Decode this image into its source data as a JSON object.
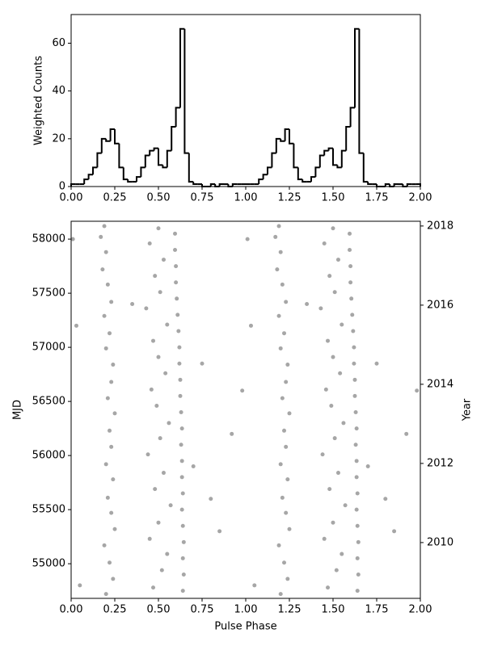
{
  "chart_data": [
    {
      "type": "histogram",
      "ylabel": "Weighted Counts",
      "color": "#000000",
      "bins": [
        0,
        0.025,
        0.05,
        0.075,
        0.1,
        0.125,
        0.15,
        0.175,
        0.2,
        0.225,
        0.25,
        0.275,
        0.3,
        0.325,
        0.35,
        0.375,
        0.4,
        0.425,
        0.45,
        0.475,
        0.5,
        0.525,
        0.55,
        0.575,
        0.6,
        0.625,
        0.65,
        0.675,
        0.7,
        0.725,
        0.75,
        0.775,
        0.8,
        0.825,
        0.85,
        0.875,
        0.9,
        0.925,
        0.95,
        0.975,
        1,
        1.025,
        1.05,
        1.075,
        1.1,
        1.125,
        1.15,
        1.175,
        1.2,
        1.225,
        1.25,
        1.275,
        1.3,
        1.325,
        1.35,
        1.375,
        1.4,
        1.425,
        1.45,
        1.475,
        1.5,
        1.525,
        1.55,
        1.575,
        1.6,
        1.625,
        1.65,
        1.675,
        1.7,
        1.725,
        1.75,
        1.775,
        1.8,
        1.825,
        1.85,
        1.875,
        1.9,
        1.925,
        1.95,
        1.975,
        2
      ],
      "values": [
        1,
        1,
        1,
        3,
        5,
        8,
        14,
        20,
        19,
        24,
        18,
        8,
        3,
        2,
        2,
        4,
        8,
        13,
        15,
        16,
        9,
        8,
        15,
        25,
        33,
        66,
        14,
        2,
        1,
        1,
        0,
        0,
        1,
        0,
        1,
        1,
        0,
        1,
        1,
        1,
        1,
        1,
        1,
        3,
        5,
        8,
        14,
        20,
        19,
        24,
        18,
        8,
        3,
        2,
        2,
        4,
        8,
        13,
        15,
        16,
        9,
        8,
        15,
        25,
        33,
        66,
        14,
        2,
        1,
        1,
        0,
        0,
        1,
        0,
        1,
        1,
        0,
        1,
        1,
        1
      ],
      "xlim": [
        0,
        2
      ],
      "xticks": [
        {
          "value": 0,
          "label": "0.00"
        },
        {
          "value": 0.25,
          "label": "0.25"
        },
        {
          "value": 0.5,
          "label": "0.50"
        },
        {
          "value": 0.75,
          "label": "0.75"
        },
        {
          "value": 1,
          "label": "1.00"
        },
        {
          "value": 1.25,
          "label": "1.25"
        },
        {
          "value": 1.5,
          "label": "1.50"
        },
        {
          "value": 1.75,
          "label": "1.75"
        },
        {
          "value": 2,
          "label": "2.00"
        }
      ],
      "ylim": [
        0,
        72
      ],
      "yticks": [
        0,
        20,
        40,
        60
      ]
    },
    {
      "type": "scatter",
      "xlabel": "Pulse Phase",
      "ylabel": "MJD",
      "y2label": "Year",
      "color": "#000000",
      "marker_alpha": 0.35,
      "x": [
        0.64,
        0.645,
        0.64,
        0.645,
        0.64,
        0.635,
        0.64,
        0.635,
        0.635,
        0.63,
        0.635,
        0.63,
        0.625,
        0.625,
        0.62,
        0.62,
        0.615,
        0.61,
        0.605,
        0.6,
        0.6,
        0.595,
        0.595,
        0.2,
        0.24,
        0.22,
        0.19,
        0.25,
        0.23,
        0.21,
        0.24,
        0.2,
        0.23,
        0.22,
        0.25,
        0.21,
        0.23,
        0.24,
        0.2,
        0.22,
        0.19,
        0.23,
        0.21,
        0.18,
        0.2,
        0.17,
        0.19,
        0.47,
        0.52,
        0.55,
        0.45,
        0.5,
        0.57,
        0.48,
        0.53,
        0.44,
        0.51,
        0.56,
        0.49,
        0.46,
        0.54,
        0.5,
        0.47,
        0.55,
        0.43,
        0.51,
        0.48,
        0.53,
        0.45,
        0.5,
        0.05,
        0.8,
        0.92,
        0.75,
        0.35,
        0.03,
        0.85,
        0.01,
        0.98,
        0.7,
        1.64,
        1.645,
        1.64,
        1.645,
        1.64,
        1.635,
        1.64,
        1.635,
        1.635,
        1.63,
        1.635,
        1.63,
        1.625,
        1.625,
        1.62,
        1.62,
        1.615,
        1.61,
        1.605,
        1.6,
        1.6,
        1.595,
        1.595,
        1.2,
        1.24,
        1.22,
        1.19,
        1.25,
        1.23,
        1.21,
        1.24,
        1.2,
        1.23,
        1.22,
        1.25,
        1.21,
        1.23,
        1.24,
        1.2,
        1.22,
        1.19,
        1.23,
        1.21,
        1.18,
        1.2,
        1.17,
        1.19,
        1.47,
        1.52,
        1.55,
        1.45,
        1.5,
        1.57,
        1.48,
        1.53,
        1.44,
        1.51,
        1.56,
        1.49,
        1.46,
        1.54,
        1.5,
        1.47,
        1.55,
        1.43,
        1.51,
        1.48,
        1.53,
        1.45,
        1.5,
        1.05,
        1.8,
        1.92,
        1.75,
        1.35,
        1.03,
        1.85,
        1.01,
        1.98,
        1.7
      ],
      "values": [
        54750,
        54900,
        55050,
        55200,
        55350,
        55500,
        55650,
        55800,
        55950,
        56100,
        56250,
        56400,
        56550,
        56700,
        56850,
        57000,
        57150,
        57300,
        57450,
        57600,
        57750,
        57900,
        58050,
        54720,
        54860,
        55010,
        55170,
        55320,
        55470,
        55610,
        55780,
        55920,
        56080,
        56230,
        56390,
        56530,
        56680,
        56840,
        56990,
        57130,
        57290,
        57420,
        57580,
        57720,
        57880,
        58020,
        58120,
        54780,
        54940,
        55090,
        55230,
        55380,
        55540,
        55690,
        55840,
        56010,
        56160,
        56300,
        56460,
        56610,
        56760,
        56910,
        57060,
        57210,
        57360,
        57510,
        57660,
        57810,
        57960,
        58100,
        54800,
        55600,
        56200,
        56850,
        57400,
        57200,
        55300,
        58000,
        56600,
        55900,
        54750,
        54900,
        55050,
        55200,
        55350,
        55500,
        55650,
        55800,
        55950,
        56100,
        56250,
        56400,
        56550,
        56700,
        56850,
        57000,
        57150,
        57300,
        57450,
        57600,
        57750,
        57900,
        58050,
        54720,
        54860,
        55010,
        55170,
        55320,
        55470,
        55610,
        55780,
        55920,
        56080,
        56230,
        56390,
        56530,
        56680,
        56840,
        56990,
        57130,
        57290,
        57420,
        57580,
        57720,
        57880,
        58020,
        58120,
        54780,
        54940,
        55090,
        55230,
        55380,
        55540,
        55690,
        55840,
        56010,
        56160,
        56300,
        56460,
        56610,
        56760,
        56910,
        57060,
        57210,
        57360,
        57510,
        57660,
        57810,
        57960,
        58100,
        54800,
        55600,
        56200,
        56850,
        57400,
        57200,
        55300,
        58000,
        56600,
        55900
      ],
      "xlim": [
        0,
        2
      ],
      "xticks": [
        {
          "value": 0,
          "label": "0.00"
        },
        {
          "value": 0.25,
          "label": "0.25"
        },
        {
          "value": 0.5,
          "label": "0.50"
        },
        {
          "value": 0.75,
          "label": "0.75"
        },
        {
          "value": 1,
          "label": "1.00"
        },
        {
          "value": 1.25,
          "label": "1.25"
        },
        {
          "value": 1.5,
          "label": "1.50"
        },
        {
          "value": 1.75,
          "label": "1.75"
        },
        {
          "value": 2,
          "label": "2.00"
        }
      ],
      "ylim": [
        54680,
        58165
      ],
      "yticks": [
        55000,
        55500,
        56000,
        56500,
        57000,
        57500,
        58000
      ],
      "y2lim": [
        2008.59,
        2018.12
      ],
      "y2ticks": [
        2010,
        2012,
        2014,
        2016,
        2018
      ]
    }
  ]
}
